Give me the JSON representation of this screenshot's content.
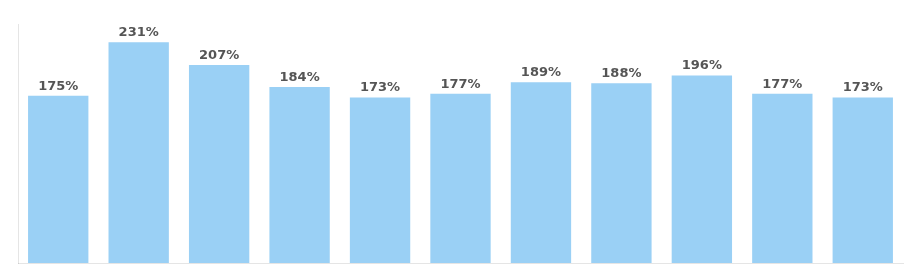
{
  "chart_data": {
    "type": "bar",
    "categories": [
      null,
      null,
      null,
      null,
      null,
      null,
      null,
      null,
      null,
      null,
      null
    ],
    "values": [
      175,
      231,
      207,
      184,
      173,
      177,
      189,
      188,
      196,
      177,
      173
    ],
    "value_labels": [
      "175%",
      "231%",
      "207%",
      "184%",
      "173%",
      "177%",
      "189%",
      "188%",
      "196%",
      "177%",
      "173%"
    ],
    "data_labels": true,
    "ylim": [
      0,
      250
    ],
    "grid": false,
    "tick_labels": false
  }
}
